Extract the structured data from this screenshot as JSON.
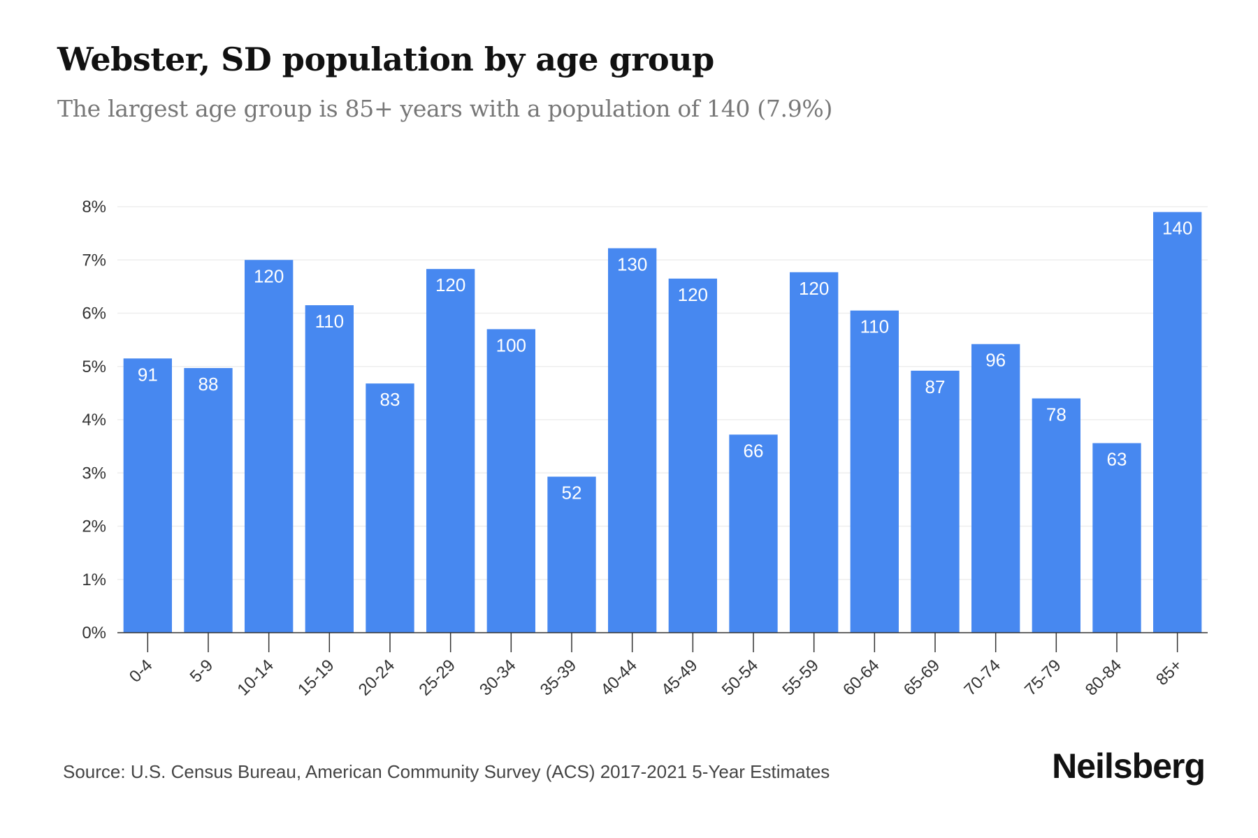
{
  "header": {
    "title": "Webster, SD population by age group",
    "subtitle": "The largest age group is 85+ years with a population of 140 (7.9%)"
  },
  "footer": {
    "source": "Source: U.S. Census Bureau, American Community Survey (ACS) 2017-2021 5-Year Estimates",
    "brand": "Neilsberg"
  },
  "colors": {
    "bar": "#4788f0",
    "grid": "#eeeeee",
    "axis": "#333333"
  },
  "chart_data": {
    "type": "bar",
    "title": "Webster, SD population by age group",
    "subtitle": "The largest age group is 85+ years with a population of 140 (7.9%)",
    "xlabel": "",
    "ylabel": "",
    "categories": [
      "0-4",
      "5-9",
      "10-14",
      "15-19",
      "20-24",
      "25-29",
      "30-34",
      "35-39",
      "40-44",
      "45-49",
      "50-54",
      "55-59",
      "60-64",
      "65-69",
      "70-74",
      "75-79",
      "80-84",
      "85+"
    ],
    "series": [
      {
        "values_percent": [
          5.15,
          4.97,
          7.0,
          6.15,
          4.68,
          6.83,
          5.7,
          2.93,
          7.22,
          6.65,
          3.72,
          6.77,
          6.05,
          4.92,
          5.42,
          4.4,
          3.56,
          7.9
        ],
        "labels": [
          "91",
          "88",
          "120",
          "110",
          "83",
          "120",
          "100",
          "52",
          "130",
          "120",
          "66",
          "120",
          "110",
          "87",
          "96",
          "78",
          "63",
          "140"
        ]
      }
    ],
    "yticks": [
      "0%",
      "1%",
      "2%",
      "3%",
      "4%",
      "5%",
      "6%",
      "7%",
      "8%"
    ],
    "ylim": [
      0,
      8
    ],
    "grid": true,
    "legend": "none"
  }
}
